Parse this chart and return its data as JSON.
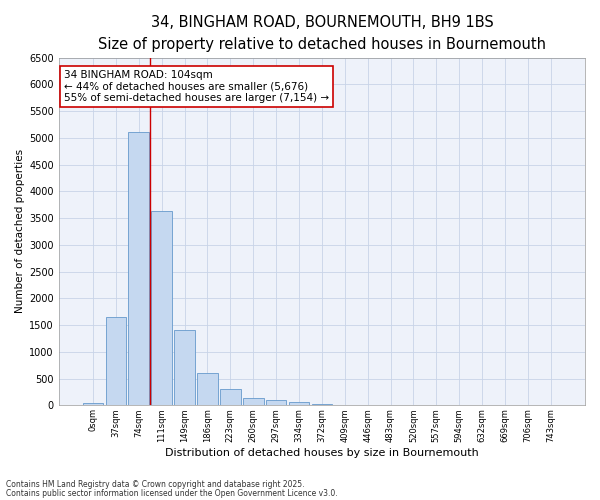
{
  "title_line1": "34, BINGHAM ROAD, BOURNEMOUTH, BH9 1BS",
  "title_line2": "Size of property relative to detached houses in Bournemouth",
  "xlabel": "Distribution of detached houses by size in Bournemouth",
  "ylabel": "Number of detached properties",
  "bar_labels": [
    "0sqm",
    "37sqm",
    "74sqm",
    "111sqm",
    "149sqm",
    "186sqm",
    "223sqm",
    "260sqm",
    "297sqm",
    "334sqm",
    "372sqm",
    "409sqm",
    "446sqm",
    "483sqm",
    "520sqm",
    "557sqm",
    "594sqm",
    "632sqm",
    "669sqm",
    "706sqm",
    "743sqm"
  ],
  "bar_values": [
    50,
    1650,
    5100,
    3630,
    1410,
    610,
    300,
    140,
    100,
    60,
    30,
    0,
    0,
    0,
    0,
    0,
    0,
    0,
    0,
    0,
    0
  ],
  "bar_color": "#c5d8f0",
  "bar_edge_color": "#6699cc",
  "ylim": [
    0,
    6500
  ],
  "yticks": [
    0,
    500,
    1000,
    1500,
    2000,
    2500,
    3000,
    3500,
    4000,
    4500,
    5000,
    5500,
    6000,
    6500
  ],
  "vline_x": 2.5,
  "vline_color": "#cc0000",
  "annotation_text": "34 BINGHAM ROAD: 104sqm\n← 44% of detached houses are smaller (5,676)\n55% of semi-detached houses are larger (7,154) →",
  "annotation_box_color": "#cc0000",
  "annotation_text_color": "#000000",
  "footer_line1": "Contains HM Land Registry data © Crown copyright and database right 2025.",
  "footer_line2": "Contains public sector information licensed under the Open Government Licence v3.0.",
  "bg_color": "#eef2fa",
  "grid_color": "#c8d4e8",
  "title_fontsize": 10.5,
  "subtitle_fontsize": 9.0,
  "ann_fontsize": 7.5
}
